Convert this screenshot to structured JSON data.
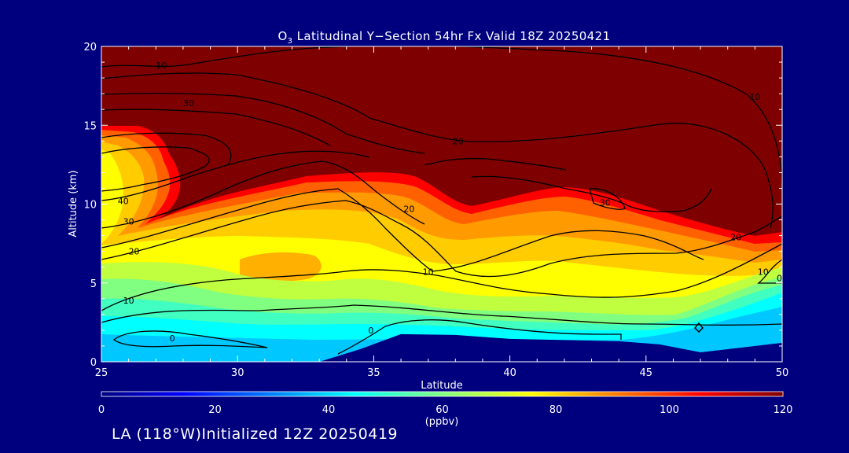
{
  "chart_data": {
    "type": "heatmap",
    "title_species": "O",
    "title_subscript": "3",
    "title_rest": " Latitudinal Y−Section 54hr  Fx Valid 18Z 20250421",
    "xlabel": "Latitude",
    "ylabel": "Altitude (km)",
    "xlim": [
      25,
      50
    ],
    "ylim": [
      0,
      20
    ],
    "xticks": [
      "25",
      "30",
      "35",
      "40",
      "45",
      "50"
    ],
    "yticks": [
      "0",
      "5",
      "10",
      "15",
      "20"
    ],
    "x_tick_values": [
      25,
      30,
      35,
      40,
      45,
      50
    ],
    "y_tick_values": [
      0,
      5,
      10,
      15,
      20
    ],
    "colorbar": {
      "label": "(ppbv)",
      "range": [
        0,
        120
      ],
      "ticks": [
        "0",
        "20",
        "40",
        "60",
        "80",
        "100",
        "120"
      ],
      "tick_values": [
        0,
        20,
        40,
        60,
        80,
        100,
        120
      ],
      "colors": [
        "#00007f",
        "#0000ff",
        "#0080ff",
        "#00ffff",
        "#80ff80",
        "#ffff00",
        "#ff8000",
        "#ff0000",
        "#7f0000"
      ]
    },
    "terrain_km": [
      {
        "lat": 25,
        "alt": 0.0
      },
      {
        "lat": 33,
        "alt": 0.0
      },
      {
        "lat": 34.5,
        "alt": 0.8
      },
      {
        "lat": 36,
        "alt": 1.75
      },
      {
        "lat": 38,
        "alt": 1.7
      },
      {
        "lat": 40,
        "alt": 1.45
      },
      {
        "lat": 44,
        "alt": 1.3
      },
      {
        "lat": 45.5,
        "alt": 1.1
      },
      {
        "lat": 47,
        "alt": 0.6
      },
      {
        "lat": 50,
        "alt": 1.2
      }
    ],
    "contour_levels": [
      {
        "label": "0",
        "lat": 27.6,
        "alt": 1.5
      },
      {
        "label": "0",
        "lat": 34.9,
        "alt": 2.0
      },
      {
        "label": "0",
        "lat": 49.9,
        "alt": 5.3
      },
      {
        "label": "10",
        "lat": 26.0,
        "alt": 3.9
      },
      {
        "label": "10",
        "lat": 37.0,
        "alt": 5.7
      },
      {
        "label": "10",
        "lat": 49.3,
        "alt": 5.7
      },
      {
        "label": "10",
        "lat": 27.2,
        "alt": 18.8
      },
      {
        "label": "10",
        "lat": 49.0,
        "alt": 16.8
      },
      {
        "label": "20",
        "lat": 26.2,
        "alt": 7.0
      },
      {
        "label": "20",
        "lat": 36.3,
        "alt": 9.7
      },
      {
        "label": "20",
        "lat": 48.3,
        "alt": 7.9
      },
      {
        "label": "20",
        "lat": 38.1,
        "alt": 14.0
      },
      {
        "label": "30",
        "lat": 26.0,
        "alt": 8.9
      },
      {
        "label": "30",
        "lat": 28.2,
        "alt": 16.4
      },
      {
        "label": "30",
        "lat": 43.5,
        "alt": 10.1
      },
      {
        "label": "40",
        "lat": 25.8,
        "alt": 10.2
      }
    ]
  },
  "footer": {
    "text": "LA (118°W)Initialized 12Z 20250419"
  }
}
